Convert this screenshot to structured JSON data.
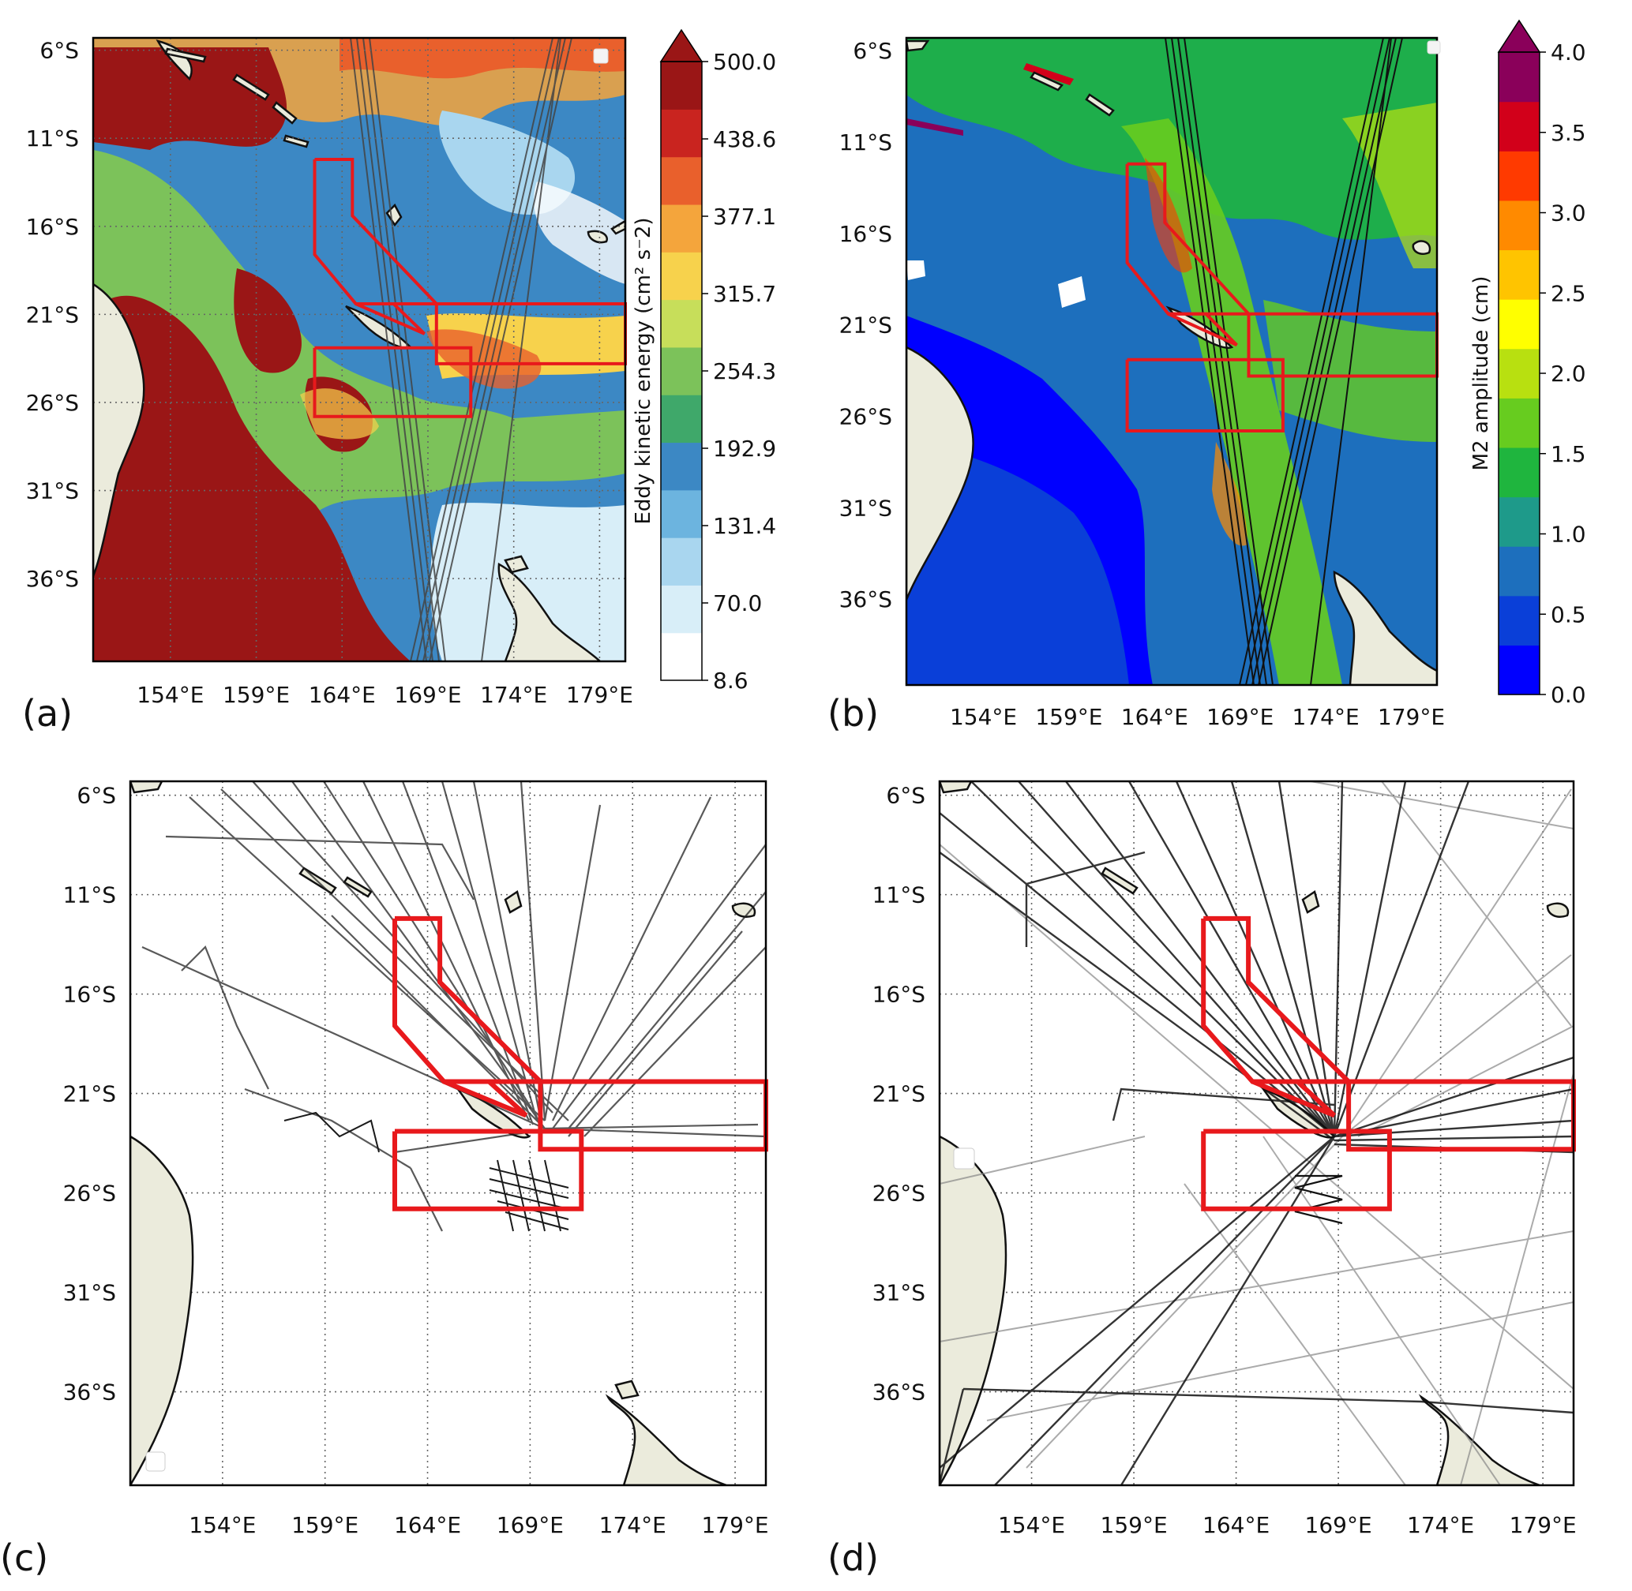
{
  "panels": [
    {
      "id": "a",
      "label": "(a)",
      "lon_ticks": [
        "154°E",
        "159°E",
        "164°E",
        "169°E",
        "174°E",
        "179°E"
      ],
      "lat_ticks": [
        "6°S",
        "11°S",
        "16°S",
        "21°S",
        "26°S",
        "31°S",
        "36°S"
      ],
      "colorbar": {
        "label": "Eddy kinetic energy (cm² s⁻2)",
        "ticks": [
          "500.0",
          "438.6",
          "377.1",
          "315.7",
          "254.3",
          "192.9",
          "131.4",
          "70.0",
          "8.6"
        ],
        "extend": "max",
        "colors": [
          "#ffffff",
          "#d8eef8",
          "#a9d6ef",
          "#6cb4df",
          "#3c88c4",
          "#3fa86a",
          "#7cc25a",
          "#c7de5a",
          "#f7d24c",
          "#f4a53c",
          "#e9602c",
          "#c9241f",
          "#9a1616"
        ]
      }
    },
    {
      "id": "b",
      "label": "(b)",
      "lon_ticks": [
        "154°E",
        "159°E",
        "164°E",
        "169°E",
        "174°E",
        "179°E"
      ],
      "lat_ticks": [
        "6°S",
        "11°S",
        "16°S",
        "21°S",
        "26°S",
        "31°S",
        "36°S"
      ],
      "colorbar": {
        "label": "M2 amplitude (cm)",
        "ticks": [
          "4.0",
          "3.5",
          "3.0",
          "2.5",
          "2.0",
          "1.5",
          "1.0",
          "0.5",
          "0.0"
        ],
        "extend": "max",
        "colors": [
          "#0000ff",
          "#0a3fd8",
          "#1d6fbd",
          "#1e9a8a",
          "#1fb53e",
          "#67cc1f",
          "#b8e010",
          "#ffff00",
          "#ffc400",
          "#ff8a00",
          "#ff3a00",
          "#d2001a",
          "#8a005a"
        ]
      }
    },
    {
      "id": "c",
      "label": "(c)",
      "lon_ticks": [
        "154°E",
        "159°E",
        "164°E",
        "169°E",
        "174°E",
        "179°E"
      ],
      "lat_ticks": [
        "6°S",
        "11°S",
        "16°S",
        "21°S",
        "26°S",
        "31°S",
        "36°S"
      ]
    },
    {
      "id": "d",
      "label": "(d)",
      "lon_ticks": [
        "154°E",
        "159°E",
        "164°E",
        "169°E",
        "174°E",
        "179°E"
      ],
      "lat_ticks": [
        "6°S",
        "11°S",
        "16°S",
        "21°S",
        "26°S",
        "31°S",
        "36°S"
      ]
    }
  ],
  "map": {
    "lon_range": [
      149.5,
      180.5
    ],
    "lat_range": [
      -40.7,
      -5.3
    ],
    "tick_lons": [
      154,
      159,
      164,
      169,
      174,
      179
    ],
    "tick_lats": [
      -6,
      -11,
      -16,
      -21,
      -26,
      -31,
      -36
    ],
    "land_color": "#ebebdc",
    "region_color": "#e8191c",
    "regions": [
      {
        "name": "New Caledonia polygon",
        "points": [
          [
            162.4,
            -12.2
          ],
          [
            164.6,
            -12.2
          ],
          [
            164.6,
            -15.4
          ],
          [
            169.5,
            -20.4
          ],
          [
            164.8,
            -20.4
          ],
          [
            162.4,
            -17.6
          ],
          [
            162.4,
            -12.2
          ]
        ]
      },
      {
        "name": "New Caledonia south wedge",
        "points": [
          [
            164.8,
            -20.4
          ],
          [
            167.0,
            -20.4
          ],
          [
            168.8,
            -22.1
          ],
          [
            164.8,
            -20.4
          ]
        ]
      },
      {
        "name": "East box",
        "points": [
          [
            169.5,
            -20.4
          ],
          [
            180.5,
            -20.4
          ],
          [
            180.5,
            -23.8
          ],
          [
            169.5,
            -23.8
          ],
          [
            169.5,
            -20.4
          ]
        ]
      },
      {
        "name": "South box",
        "points": [
          [
            162.4,
            -22.9
          ],
          [
            171.5,
            -22.9
          ],
          [
            171.5,
            -26.8
          ],
          [
            162.4,
            -26.8
          ],
          [
            162.4,
            -22.9
          ]
        ]
      }
    ]
  }
}
